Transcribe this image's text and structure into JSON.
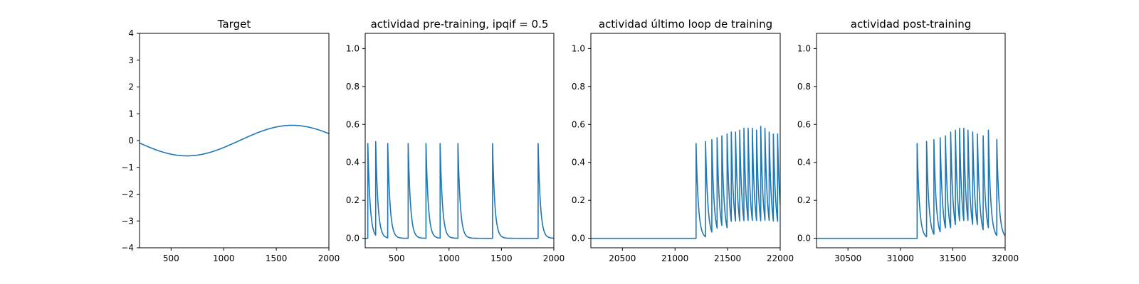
{
  "colors": {
    "series": "#1f77b4",
    "axes": "#000000",
    "background": "#ffffff"
  },
  "chart_data": [
    {
      "type": "line",
      "title": "Target",
      "xlabel": "",
      "ylabel": "",
      "xlim": [
        200,
        2000
      ],
      "ylim": [
        -4,
        4
      ],
      "xticks": [
        500,
        1000,
        1500,
        2000
      ],
      "yticks": [
        -4,
        -3,
        -2,
        -1,
        0,
        1,
        2,
        3,
        4
      ],
      "series": [
        {
          "kind": "sine",
          "x": [
            200,
            2000
          ],
          "amplitude": 0.57,
          "period": 2000,
          "phase_x0": 1150,
          "values_sampled": {
            "x": [
              200,
              650,
              1150,
              1650,
              2000
            ],
            "y": [
              -0.08,
              -0.57,
              0.0,
              0.57,
              0.28
            ]
          }
        }
      ]
    },
    {
      "type": "line",
      "title": "actividad pre-training, ipqif = 0.5",
      "xlabel": "",
      "ylabel": "",
      "xlim": [
        200,
        2000
      ],
      "ylim": [
        -0.05,
        1.08
      ],
      "xticks": [
        500,
        1000,
        1500,
        2000
      ],
      "yticks": [
        0.0,
        0.2,
        0.4,
        0.6,
        0.8,
        1.0
      ],
      "series": [
        {
          "kind": "spike_train",
          "x_start": 200,
          "x_end": 2000,
          "baseline": 0.0,
          "decay": 22,
          "spikes": [
            {
              "x": 225,
              "peak": 0.5
            },
            {
              "x": 300,
              "peak": 0.51
            },
            {
              "x": 415,
              "peak": 0.5
            },
            {
              "x": 610,
              "peak": 0.5
            },
            {
              "x": 780,
              "peak": 0.5
            },
            {
              "x": 915,
              "peak": 0.5
            },
            {
              "x": 1085,
              "peak": 0.5
            },
            {
              "x": 1415,
              "peak": 0.5
            },
            {
              "x": 1850,
              "peak": 0.5
            }
          ]
        }
      ]
    },
    {
      "type": "line",
      "title": "actividad último loop de training",
      "xlabel": "",
      "ylabel": "",
      "xlim": [
        20200,
        22000
      ],
      "ylim": [
        -0.05,
        1.08
      ],
      "xticks": [
        20500,
        21000,
        21500,
        22000
      ],
      "yticks": [
        0.0,
        0.2,
        0.4,
        0.6,
        0.8,
        1.0
      ],
      "series": [
        {
          "kind": "spike_train",
          "x_start": 20200,
          "x_end": 22000,
          "baseline": 0.0,
          "decay": 22,
          "spikes": [
            {
              "x": 21200,
              "peak": 0.5
            },
            {
              "x": 21290,
              "peak": 0.51
            },
            {
              "x": 21350,
              "peak": 0.52
            },
            {
              "x": 21400,
              "peak": 0.53
            },
            {
              "x": 21445,
              "peak": 0.54
            },
            {
              "x": 21495,
              "peak": 0.55
            },
            {
              "x": 21535,
              "peak": 0.56
            },
            {
              "x": 21575,
              "peak": 0.56
            },
            {
              "x": 21615,
              "peak": 0.57
            },
            {
              "x": 21655,
              "peak": 0.58
            },
            {
              "x": 21695,
              "peak": 0.58
            },
            {
              "x": 21735,
              "peak": 0.58
            },
            {
              "x": 21775,
              "peak": 0.57
            },
            {
              "x": 21815,
              "peak": 0.59
            },
            {
              "x": 21855,
              "peak": 0.58
            },
            {
              "x": 21895,
              "peak": 0.56
            },
            {
              "x": 21935,
              "peak": 0.55
            },
            {
              "x": 21975,
              "peak": 0.55
            }
          ]
        }
      ]
    },
    {
      "type": "line",
      "title": "actividad post-training",
      "xlabel": "",
      "ylabel": "",
      "xlim": [
        30200,
        32000
      ],
      "ylim": [
        -0.05,
        1.08
      ],
      "xticks": [
        30500,
        31000,
        31500,
        32000
      ],
      "yticks": [
        0.0,
        0.2,
        0.4,
        0.6,
        0.8,
        1.0
      ],
      "series": [
        {
          "kind": "spike_train",
          "x_start": 30200,
          "x_end": 32000,
          "baseline": 0.0,
          "decay": 22,
          "spikes": [
            {
              "x": 31160,
              "peak": 0.5
            },
            {
              "x": 31250,
              "peak": 0.51
            },
            {
              "x": 31320,
              "peak": 0.52
            },
            {
              "x": 31380,
              "peak": 0.53
            },
            {
              "x": 31430,
              "peak": 0.54
            },
            {
              "x": 31480,
              "peak": 0.56
            },
            {
              "x": 31525,
              "peak": 0.57
            },
            {
              "x": 31565,
              "peak": 0.58
            },
            {
              "x": 31605,
              "peak": 0.58
            },
            {
              "x": 31645,
              "peak": 0.57
            },
            {
              "x": 31690,
              "peak": 0.56
            },
            {
              "x": 31735,
              "peak": 0.55
            },
            {
              "x": 31790,
              "peak": 0.54
            },
            {
              "x": 31840,
              "peak": 0.57
            },
            {
              "x": 31920,
              "peak": 0.52
            }
          ]
        }
      ]
    }
  ]
}
